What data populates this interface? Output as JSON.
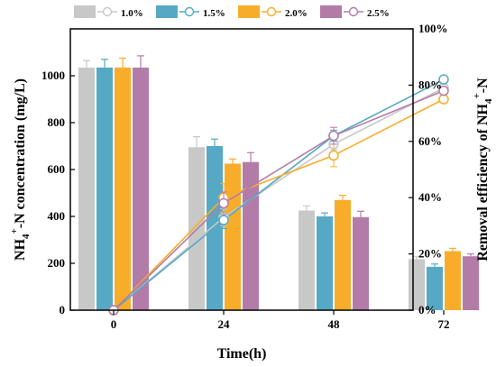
{
  "chart_data": {
    "type": "bar+line",
    "xlabel": "Time(h)",
    "ylabel_left": "NH4+-N concentration (mg/L)",
    "ylabel_right": "Removal efficiency of  NH4+-N",
    "categories": [
      "0",
      "24",
      "48",
      "72"
    ],
    "ylim_left": [
      0,
      1200
    ],
    "yticks_left": [
      "0",
      "200",
      "400",
      "600",
      "800",
      "1000"
    ],
    "ylim_right": [
      0,
      100
    ],
    "yticks_right": [
      "0%",
      "20%",
      "40%",
      "60%",
      "80%",
      "100%"
    ],
    "series": [
      {
        "name": "1.0%",
        "color": "#c8c8c8",
        "bar_values": [
          1035,
          695,
          425,
          218
        ],
        "bar_errors": [
          30,
          45,
          20,
          10
        ],
        "efficiency": [
          0,
          33,
          59,
          79
        ],
        "efficiency_errors": [
          0,
          3,
          2,
          1
        ]
      },
      {
        "name": "1.5%",
        "color": "#56a9c4",
        "bar_values": [
          1035,
          700,
          400,
          185
        ],
        "bar_errors": [
          35,
          30,
          15,
          12
        ],
        "efficiency": [
          0,
          32,
          62,
          82
        ],
        "efficiency_errors": [
          0,
          3,
          2,
          1
        ]
      },
      {
        "name": "2.0%",
        "color": "#f8ad2a",
        "bar_values": [
          1035,
          625,
          470,
          252
        ],
        "bar_errors": [
          40,
          20,
          20,
          12
        ],
        "efficiency": [
          0,
          40,
          55,
          75
        ],
        "efficiency_errors": [
          0,
          5,
          4,
          1
        ]
      },
      {
        "name": "2.5%",
        "color": "#b37ca8",
        "bar_values": [
          1035,
          632,
          397,
          230
        ],
        "bar_errors": [
          50,
          40,
          25,
          10
        ],
        "efficiency": [
          0,
          38,
          62,
          78
        ],
        "efficiency_errors": [
          0,
          4,
          3,
          1
        ]
      }
    ]
  }
}
